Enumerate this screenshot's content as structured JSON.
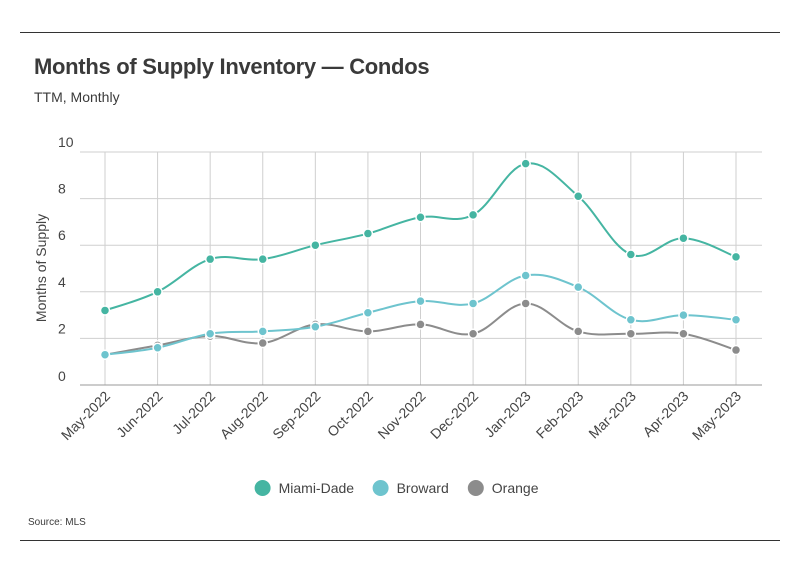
{
  "header": {
    "title": "Months of Supply Inventory — Condos",
    "subtitle": "TTM, Monthly"
  },
  "footer": {
    "source": "Source: MLS"
  },
  "chart_data": {
    "type": "line",
    "title": "Months of Supply Inventory — Condos",
    "subtitle": "TTM, Monthly",
    "xlabel": "",
    "ylabel": "Months of Supply",
    "ylim": [
      0,
      10
    ],
    "yticks": [
      0,
      2,
      4,
      6,
      8,
      10
    ],
    "grid": true,
    "legend_position": "bottom",
    "categories": [
      "May-2022",
      "Jun-2022",
      "Jul-2022",
      "Aug-2022",
      "Sep-2022",
      "Oct-2022",
      "Nov-2022",
      "Dec-2022",
      "Jan-2023",
      "Feb-2023",
      "Mar-2023",
      "Apr-2023",
      "May-2023"
    ],
    "series": [
      {
        "name": "Miami-Dade",
        "color": "#45b5a2",
        "values": [
          3.2,
          4.0,
          5.4,
          5.4,
          6.0,
          6.5,
          7.2,
          7.3,
          9.5,
          8.1,
          5.6,
          6.3,
          5.5
        ]
      },
      {
        "name": "Broward",
        "color": "#6ec4ce",
        "values": [
          1.3,
          1.6,
          2.2,
          2.3,
          2.5,
          3.1,
          3.6,
          3.5,
          4.7,
          4.2,
          2.8,
          3.0,
          2.8
        ]
      },
      {
        "name": "Orange",
        "color": "#8c8c8c",
        "values": [
          1.3,
          1.7,
          2.1,
          1.8,
          2.6,
          2.3,
          2.6,
          2.2,
          3.5,
          2.3,
          2.2,
          2.2,
          1.5
        ]
      }
    ]
  }
}
